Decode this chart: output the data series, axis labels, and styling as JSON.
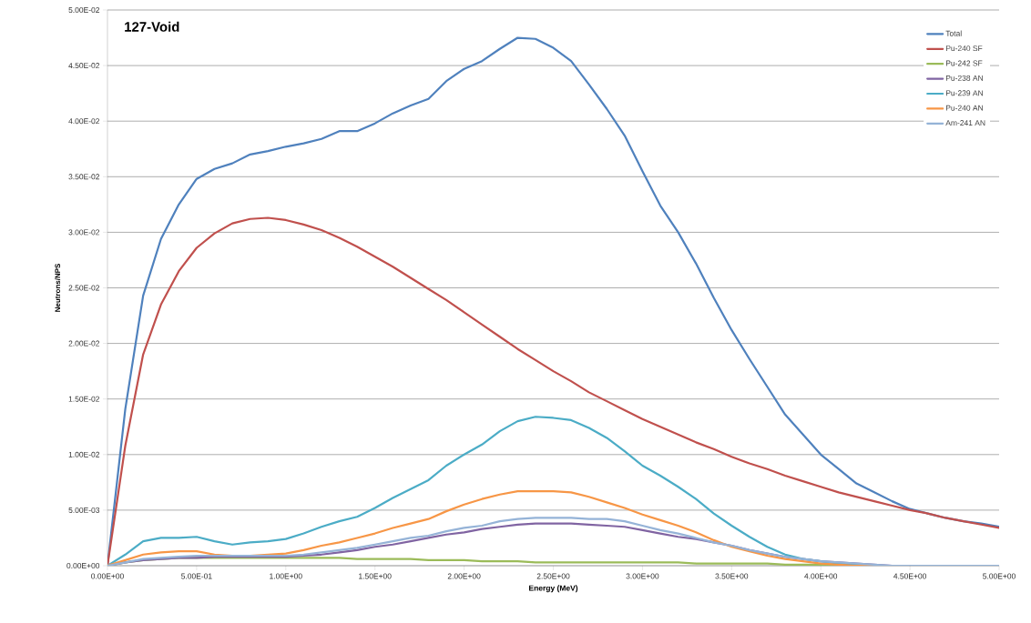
{
  "chart_data": {
    "type": "line",
    "title": "127-Void",
    "xlabel": "Energy (MeV)",
    "ylabel": "Neutrons/NPS",
    "x": [
      0,
      0.1,
      0.2,
      0.3,
      0.4,
      0.5,
      0.6,
      0.7,
      0.8,
      0.9,
      1.0,
      1.1,
      1.2,
      1.3,
      1.4,
      1.5,
      1.6,
      1.7,
      1.8,
      1.9,
      2.0,
      2.1,
      2.2,
      2.3,
      2.4,
      2.5,
      2.6,
      2.7,
      2.8,
      2.9,
      3.0,
      3.1,
      3.2,
      3.3,
      3.4,
      3.5,
      3.6,
      3.7,
      3.8,
      3.9,
      4.0,
      4.1,
      4.2,
      4.3,
      4.4,
      4.5,
      4.6,
      4.7,
      4.8,
      4.9,
      5.0
    ],
    "series": [
      {
        "name": "Total",
        "color": "#4f81bd",
        "values": [
          0,
          0.0141,
          0.0243,
          0.0294,
          0.0325,
          0.0348,
          0.0357,
          0.0362,
          0.037,
          0.0373,
          0.0377,
          0.038,
          0.0384,
          0.0391,
          0.0391,
          0.0398,
          0.0407,
          0.0414,
          0.042,
          0.0436,
          0.0447,
          0.0454,
          0.0465,
          0.0475,
          0.0474,
          0.0466,
          0.0454,
          0.0433,
          0.0411,
          0.0387,
          0.0355,
          0.0324,
          0.03,
          0.0272,
          0.0241,
          0.0212,
          0.0186,
          0.0161,
          0.0136,
          0.0118,
          0.01,
          0.0087,
          0.0074,
          0.0066,
          0.0058,
          0.0051,
          0.0047,
          0.0043,
          0.004,
          0.0038,
          0.0035
        ]
      },
      {
        "name": "Pu-240 SF",
        "color": "#c0504d",
        "values": [
          0,
          0.0108,
          0.019,
          0.0235,
          0.0265,
          0.0286,
          0.0299,
          0.0308,
          0.0312,
          0.0313,
          0.0311,
          0.0307,
          0.0302,
          0.0295,
          0.0287,
          0.0278,
          0.0269,
          0.0259,
          0.0249,
          0.0239,
          0.0228,
          0.0217,
          0.0206,
          0.0195,
          0.0185,
          0.0175,
          0.0166,
          0.0156,
          0.0148,
          0.014,
          0.0132,
          0.0125,
          0.0118,
          0.0111,
          0.0105,
          0.0098,
          0.0092,
          0.0087,
          0.0081,
          0.0076,
          0.0071,
          0.0066,
          0.0062,
          0.0058,
          0.0054,
          0.005,
          0.0047,
          0.0043,
          0.004,
          0.0037,
          0.0034
        ]
      },
      {
        "name": "Pu-242 SF",
        "color": "#9bbb59",
        "values": [
          0,
          0.0003,
          0.0005,
          0.0006,
          0.0007,
          0.0007,
          0.0007,
          0.0007,
          0.0007,
          0.0007,
          0.0007,
          0.0007,
          0.0007,
          0.0007,
          0.0006,
          0.0006,
          0.0006,
          0.0006,
          0.0005,
          0.0005,
          0.0005,
          0.0004,
          0.0004,
          0.0004,
          0.0003,
          0.0003,
          0.0003,
          0.0003,
          0.0003,
          0.0003,
          0.0003,
          0.0003,
          0.0003,
          0.0002,
          0.0002,
          0.0002,
          0.0002,
          0.0002,
          0.0001,
          0.0001,
          0.0001,
          0.0001,
          0,
          null,
          null,
          null,
          null,
          null,
          null,
          null,
          null
        ]
      },
      {
        "name": "Pu-238 AN",
        "color": "#8064a2",
        "values": [
          0,
          0.0003,
          0.0005,
          0.0006,
          0.0007,
          0.0007,
          0.0008,
          0.0008,
          0.0008,
          0.0008,
          0.0008,
          0.0009,
          0.001,
          0.0012,
          0.0014,
          0.0017,
          0.0019,
          0.0022,
          0.0025,
          0.0028,
          0.003,
          0.0033,
          0.0035,
          0.0037,
          0.0038,
          0.0038,
          0.0038,
          0.0037,
          0.0036,
          0.0035,
          0.0032,
          0.0029,
          0.0026,
          0.0024,
          0.0021,
          0.0018,
          0.0014,
          0.0011,
          0.0008,
          0.0006,
          0.0004,
          0.0003,
          0.0002,
          0.0001,
          0,
          0,
          0,
          0,
          0,
          0,
          0
        ]
      },
      {
        "name": "Pu-239 AN",
        "color": "#4bacc6",
        "values": [
          0,
          0.001,
          0.0022,
          0.0025,
          0.0025,
          0.0026,
          0.0022,
          0.0019,
          0.0021,
          0.0022,
          0.0024,
          0.0029,
          0.0035,
          0.004,
          0.0044,
          0.0052,
          0.0061,
          0.0069,
          0.0077,
          0.009,
          0.01,
          0.0109,
          0.0121,
          0.013,
          0.0134,
          0.0133,
          0.0131,
          0.0124,
          0.0115,
          0.0103,
          0.009,
          0.0081,
          0.0071,
          0.006,
          0.0047,
          0.0036,
          0.0026,
          0.0017,
          0.001,
          0.0006,
          0.0004,
          0.0002,
          0.0001,
          0,
          0,
          0,
          0,
          0,
          0,
          0,
          0
        ]
      },
      {
        "name": "Pu-240 AN",
        "color": "#f79646",
        "values": [
          0,
          0.0005,
          0.001,
          0.0012,
          0.0013,
          0.0013,
          0.001,
          0.0009,
          0.0009,
          0.001,
          0.0011,
          0.0014,
          0.0018,
          0.0021,
          0.0025,
          0.0029,
          0.0034,
          0.0038,
          0.0042,
          0.0049,
          0.0055,
          0.006,
          0.0064,
          0.0067,
          0.0067,
          0.0067,
          0.0066,
          0.0062,
          0.0057,
          0.0052,
          0.0046,
          0.0041,
          0.0036,
          0.003,
          0.0023,
          0.0017,
          0.0013,
          0.0009,
          0.0006,
          0.0004,
          0.0002,
          0.0001,
          0,
          0,
          0,
          null,
          null,
          null,
          null,
          null,
          null
        ]
      },
      {
        "name": "Am-241 AN",
        "color": "#95b3d7",
        "values": [
          0,
          0.0003,
          0.0006,
          0.0007,
          0.0008,
          0.0009,
          0.0009,
          0.0009,
          0.0009,
          0.0009,
          0.0009,
          0.001,
          0.0012,
          0.0014,
          0.0016,
          0.0019,
          0.0022,
          0.0025,
          0.0027,
          0.0031,
          0.0034,
          0.0036,
          0.004,
          0.0042,
          0.0043,
          0.0043,
          0.0043,
          0.0042,
          0.0042,
          0.004,
          0.0036,
          0.0032,
          0.0029,
          0.0025,
          0.0021,
          0.0018,
          0.0014,
          0.0011,
          0.0008,
          0.0006,
          0.0004,
          0.0003,
          0.0002,
          0.0001,
          0,
          0,
          0,
          0,
          0,
          0,
          0
        ]
      }
    ],
    "xlim": [
      0,
      5
    ],
    "ylim": [
      0,
      0.05
    ],
    "xticks": [
      {
        "value": 0,
        "label": "0.00E+00"
      },
      {
        "value": 0.5,
        "label": "5.00E-01"
      },
      {
        "value": 1.0,
        "label": "1.00E+00"
      },
      {
        "value": 1.5,
        "label": "1.50E+00"
      },
      {
        "value": 2.0,
        "label": "2.00E+00"
      },
      {
        "value": 2.5,
        "label": "2.50E+00"
      },
      {
        "value": 3.0,
        "label": "3.00E+00"
      },
      {
        "value": 3.5,
        "label": "3.50E+00"
      },
      {
        "value": 4.0,
        "label": "4.00E+00"
      },
      {
        "value": 4.5,
        "label": "4.50E+00"
      },
      {
        "value": 5.0,
        "label": "5.00E+00"
      }
    ],
    "yticks": [
      {
        "value": 0,
        "label": "0.00E+00"
      },
      {
        "value": 0.005,
        "label": "5.00E-03"
      },
      {
        "value": 0.01,
        "label": "1.00E-02"
      },
      {
        "value": 0.015,
        "label": "1.50E-02"
      },
      {
        "value": 0.02,
        "label": "2.00E-02"
      },
      {
        "value": 0.025,
        "label": "2.50E-02"
      },
      {
        "value": 0.03,
        "label": "3.00E-02"
      },
      {
        "value": 0.035,
        "label": "3.50E-02"
      },
      {
        "value": 0.04,
        "label": "4.00E-02"
      },
      {
        "value": 0.045,
        "label": "4.50E-02"
      },
      {
        "value": 0.05,
        "label": "5.00E-02"
      }
    ],
    "grid": "y",
    "legend": "top right"
  }
}
